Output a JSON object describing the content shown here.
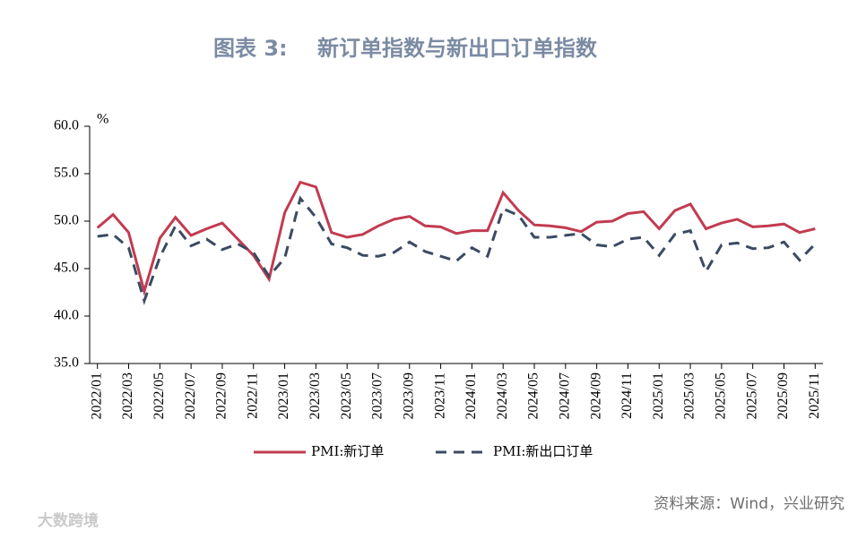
{
  "chart_data": {
    "type": "line",
    "figure_label": "图表 3:",
    "title": "新订单指数与新出口订单指数",
    "y_unit": "%",
    "categories": [
      "2022/01",
      null,
      "2022/03",
      null,
      "2022/05",
      null,
      "2022/07",
      null,
      "2022/09",
      null,
      "2022/11",
      null,
      "2023/01",
      null,
      "2023/03",
      null,
      "2023/05",
      null,
      "2023/07",
      null,
      "2023/09",
      null,
      "2023/11",
      null,
      "2024/01",
      null,
      "2024/03",
      null,
      "2024/05",
      null,
      "2024/07",
      null,
      "2024/09",
      null,
      "2024/11",
      null,
      "2025/01",
      null,
      "2025/03",
      null,
      "2025/05",
      null,
      "2025/07",
      null,
      "2025/09",
      null,
      "2025/11"
    ],
    "series": [
      {
        "name": "PMI:新订单",
        "color": "#c23b50",
        "dash": false,
        "values": [
          49.3,
          50.7,
          48.8,
          42.6,
          48.2,
          50.4,
          48.5,
          49.2,
          49.8,
          48.1,
          46.4,
          43.9,
          50.9,
          54.1,
          53.6,
          48.8,
          48.3,
          48.6,
          49.5,
          50.2,
          50.5,
          49.5,
          49.4,
          48.7,
          49.0,
          49.0,
          53.0,
          51.1,
          49.6,
          49.5,
          49.3,
          48.9,
          49.9,
          50.0,
          50.8,
          51.0,
          49.2,
          51.1,
          51.8,
          49.2,
          49.8,
          50.2,
          49.4,
          49.5,
          49.7,
          48.8,
          49.2
        ]
      },
      {
        "name": "PMI:新出口订单",
        "color": "#3b4a63",
        "dash": true,
        "values": [
          48.4,
          48.6,
          47.2,
          41.6,
          46.2,
          49.5,
          47.4,
          48.1,
          47.0,
          47.6,
          46.7,
          44.2,
          46.1,
          52.4,
          50.4,
          47.6,
          47.2,
          46.4,
          46.3,
          46.7,
          47.8,
          46.8,
          46.3,
          45.8,
          47.2,
          46.3,
          51.3,
          50.6,
          48.3,
          48.3,
          48.5,
          48.7,
          47.5,
          47.3,
          48.1,
          48.3,
          46.4,
          48.6,
          49.0,
          44.7,
          47.5,
          47.7,
          47.1,
          47.2,
          47.8,
          45.9,
          47.6
        ]
      }
    ],
    "ylim": [
      35,
      60
    ],
    "yticks": [
      {
        "value": 35,
        "label": "35.0"
      },
      {
        "value": 40,
        "label": "40.0"
      },
      {
        "value": 45,
        "label": "45.0"
      },
      {
        "value": 50,
        "label": "50.0"
      },
      {
        "value": 55,
        "label": "55.0"
      },
      {
        "value": 60,
        "label": "60.0"
      }
    ],
    "legend": "bottom",
    "source": "资料来源：Wind，兴业研究",
    "watermark": "大数跨境"
  }
}
